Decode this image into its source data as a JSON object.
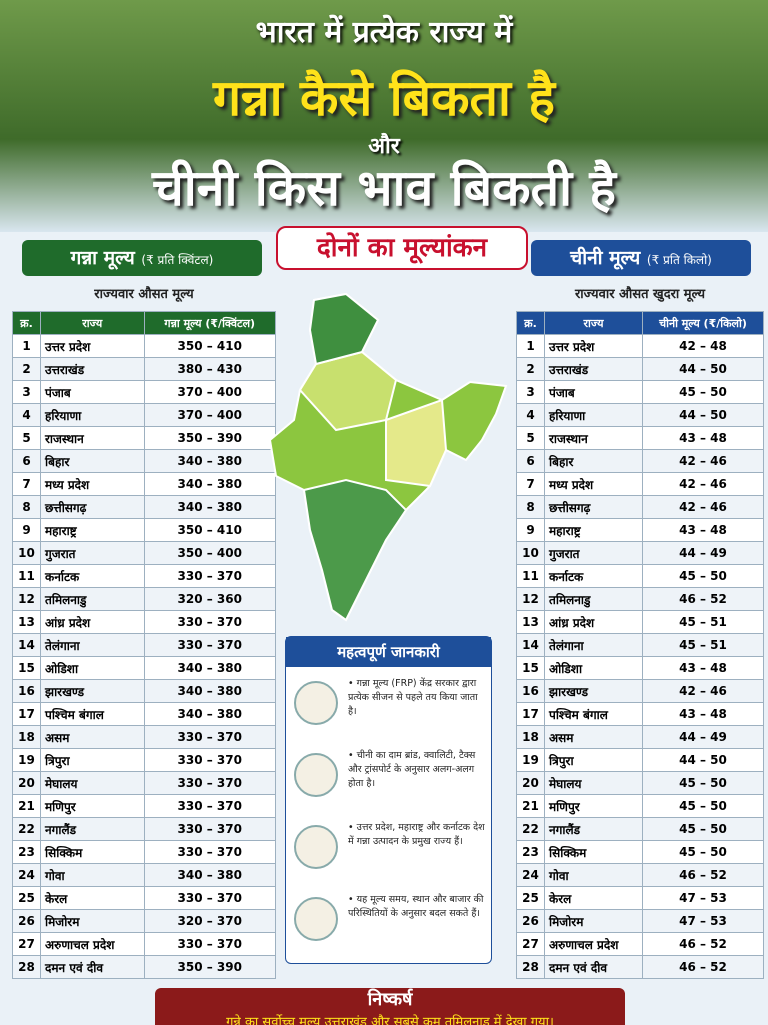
{
  "header": {
    "line1": "भारत में प्रत्येक राज्य में",
    "line2": "गन्ना कैसे बिकता है",
    "line3": "और",
    "line4": "चीनी किस भाव बिकती है",
    "badge": "दोनों का मूल्यांकन"
  },
  "cane_table": {
    "title": "गन्ना मूल्य",
    "unit": "(₹ प्रति क्विंटल)",
    "subtitle": "राज्यवार औसत मूल्य",
    "columns": [
      "क्र.",
      "राज्य",
      "गन्ना मूल्य (₹/क्विंटल)"
    ],
    "rows": [
      [
        "1",
        "उत्तर प्रदेश",
        "350 – 410"
      ],
      [
        "2",
        "उत्तराखंड",
        "380 – 430"
      ],
      [
        "3",
        "पंजाब",
        "370 – 400"
      ],
      [
        "4",
        "हरियाणा",
        "370 – 400"
      ],
      [
        "5",
        "राजस्थान",
        "350 – 390"
      ],
      [
        "6",
        "बिहार",
        "340 – 380"
      ],
      [
        "7",
        "मध्य प्रदेश",
        "340 – 380"
      ],
      [
        "8",
        "छत्तीसगढ़",
        "340 – 380"
      ],
      [
        "9",
        "महाराष्ट्र",
        "350 – 410"
      ],
      [
        "10",
        "गुजरात",
        "350 – 400"
      ],
      [
        "11",
        "कर्नाटक",
        "330 – 370"
      ],
      [
        "12",
        "तमिलनाडु",
        "320 – 360"
      ],
      [
        "13",
        "आंध्र प्रदेश",
        "330 – 370"
      ],
      [
        "14",
        "तेलंगाना",
        "330 – 370"
      ],
      [
        "15",
        "ओडिशा",
        "340 – 380"
      ],
      [
        "16",
        "झारखण्ड",
        "340 – 380"
      ],
      [
        "17",
        "पश्चिम बंगाल",
        "340 – 380"
      ],
      [
        "18",
        "असम",
        "330 – 370"
      ],
      [
        "19",
        "त्रिपुरा",
        "330 – 370"
      ],
      [
        "20",
        "मेघालय",
        "330 – 370"
      ],
      [
        "21",
        "मणिपुर",
        "330 – 370"
      ],
      [
        "22",
        "नगालैंड",
        "330 – 370"
      ],
      [
        "23",
        "सिक्किम",
        "330 – 370"
      ],
      [
        "24",
        "गोवा",
        "340 – 380"
      ],
      [
        "25",
        "केरल",
        "330 – 370"
      ],
      [
        "26",
        "मिजोरम",
        "320 – 370"
      ],
      [
        "27",
        "अरुणाचल प्रदेश",
        "330 – 370"
      ],
      [
        "28",
        "दमन एवं दीव",
        "350 – 390"
      ]
    ]
  },
  "sugar_table": {
    "title": "चीनी मूल्य",
    "unit": "(₹ प्रति किलो)",
    "subtitle": "राज्यवार औसत खुदरा मूल्य",
    "columns": [
      "क्र.",
      "राज्य",
      "चीनी मूल्य (₹/किलो)"
    ],
    "rows": [
      [
        "1",
        "उत्तर प्रदेश",
        "42 – 48"
      ],
      [
        "2",
        "उत्तराखंड",
        "44 – 50"
      ],
      [
        "3",
        "पंजाब",
        "45 – 50"
      ],
      [
        "4",
        "हरियाणा",
        "44 – 50"
      ],
      [
        "5",
        "राजस्थान",
        "43 – 48"
      ],
      [
        "6",
        "बिहार",
        "42 – 46"
      ],
      [
        "7",
        "मध्य प्रदेश",
        "42 – 46"
      ],
      [
        "8",
        "छत्तीसगढ़",
        "42 – 46"
      ],
      [
        "9",
        "महाराष्ट्र",
        "43 – 48"
      ],
      [
        "10",
        "गुजरात",
        "44 – 49"
      ],
      [
        "11",
        "कर्नाटक",
        "45 – 50"
      ],
      [
        "12",
        "तमिलनाडु",
        "46 – 52"
      ],
      [
        "13",
        "आंध्र प्रदेश",
        "45 – 51"
      ],
      [
        "14",
        "तेलंगाना",
        "45 – 51"
      ],
      [
        "15",
        "ओडिशा",
        "43 – 48"
      ],
      [
        "16",
        "झारखण्ड",
        "42 – 46"
      ],
      [
        "17",
        "पश्चिम बंगाल",
        "43 – 48"
      ],
      [
        "18",
        "असम",
        "44 – 49"
      ],
      [
        "19",
        "त्रिपुरा",
        "44 – 50"
      ],
      [
        "20",
        "मेघालय",
        "45 – 50"
      ],
      [
        "21",
        "मणिपुर",
        "45 – 50"
      ],
      [
        "22",
        "नगालैंड",
        "45 – 50"
      ],
      [
        "23",
        "सिक्किम",
        "45 – 50"
      ],
      [
        "24",
        "गोवा",
        "46 – 52"
      ],
      [
        "25",
        "केरल",
        "47 – 53"
      ],
      [
        "26",
        "मिजोरम",
        "47 – 53"
      ],
      [
        "27",
        "अरुणाचल प्रदेश",
        "46 – 52"
      ],
      [
        "28",
        "दमन एवं दीव",
        "46 – 52"
      ]
    ]
  },
  "info": {
    "title": "महत्वपूर्ण जानकारी",
    "items": [
      "• गन्ना मूल्य (FRP) केंद्र सरकार द्वारा प्रत्येक सीजन से पहले तय किया जाता है।",
      "• चीनी का दाम ब्रांड, क्वालिटी, टैक्स और ट्रांसपोर्ट के अनुसार अलग-अलग होता है।",
      "• उत्तर प्रदेश, महाराष्ट्र और कर्नाटक देश में गन्ना उत्पादन के प्रमुख राज्य हैं।",
      "• यह मूल्य समय, स्थान और बाजार की परिस्थितियों के अनुसार बदल सकते हैं।"
    ]
  },
  "conclusion": {
    "title": "निष्कर्ष",
    "text": "गन्ने का सर्वोच्च मूल्य उत्तराखंड और सबसे कम तमिलनाडु में देखा गया।"
  }
}
